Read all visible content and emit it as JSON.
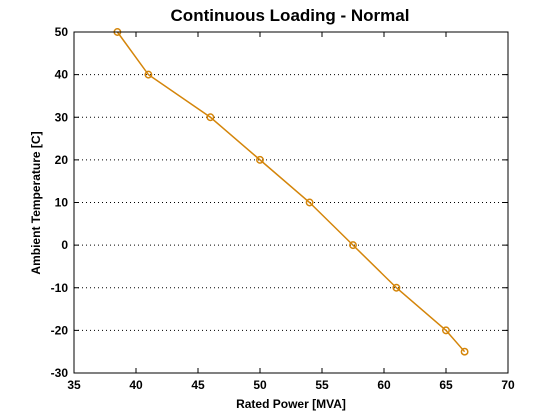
{
  "chart_data": {
    "type": "line",
    "title": "Continuous Loading - Normal",
    "xlabel": "Rated Power [MVA]",
    "ylabel": "Ambient Temperature [C]",
    "xlim": [
      35,
      70
    ],
    "ylim": [
      -30,
      50
    ],
    "x_ticks": [
      35,
      40,
      45,
      50,
      55,
      60,
      65,
      70
    ],
    "y_ticks": [
      -30,
      -20,
      -10,
      0,
      10,
      20,
      30,
      40,
      50
    ],
    "x_tick_labels": [
      "35",
      "40",
      "45",
      "50",
      "55",
      "60",
      "65",
      "70"
    ],
    "y_tick_labels": [
      "-30",
      "-20",
      "-10",
      "0",
      "10",
      "20",
      "30",
      "40",
      "50"
    ],
    "grid": "horizontal dotted",
    "series": [
      {
        "name": "Continuous Loading - Normal",
        "color": "#D4850A",
        "marker": "circle",
        "x": [
          38.5,
          41,
          46,
          50,
          54,
          57.5,
          61,
          65,
          66.5
        ],
        "y": [
          50,
          40,
          30,
          20,
          10,
          0,
          -10,
          -20,
          -25
        ]
      }
    ]
  }
}
